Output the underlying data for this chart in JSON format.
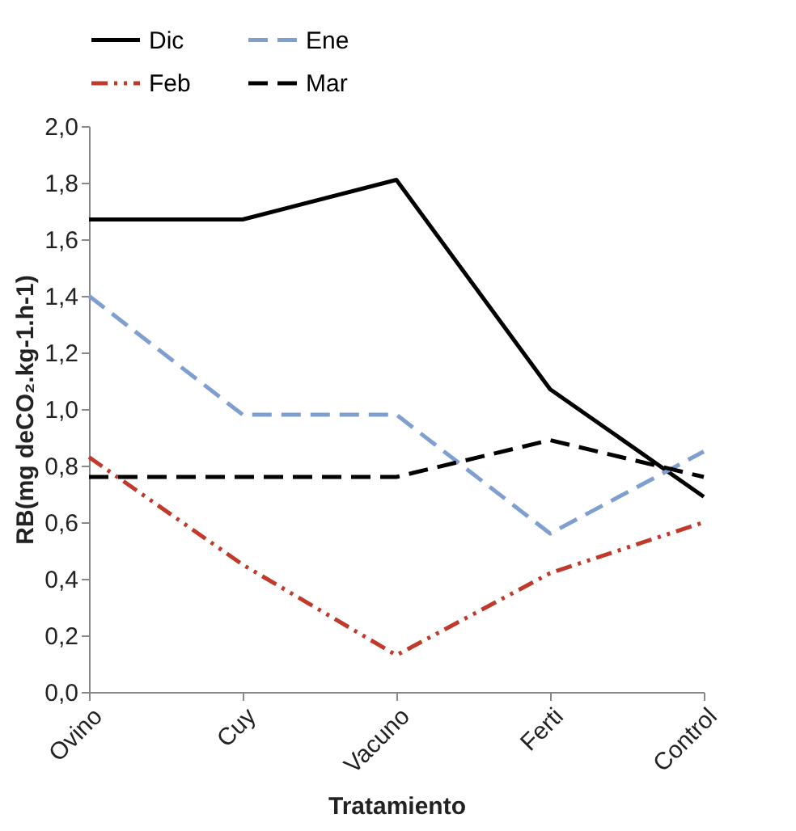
{
  "chart_data": {
    "type": "line",
    "xlabel": "Tratamiento",
    "ylabel": "RB(mg deCO₂.kg-1.h-1)",
    "categories": [
      "Ovino",
      "Cuy",
      "Vacuno",
      "Ferti",
      "Control"
    ],
    "series": [
      {
        "name": "Dic",
        "color": "#000000",
        "line_style": "solid",
        "values": [
          1.67,
          1.67,
          1.81,
          1.07,
          0.69
        ]
      },
      {
        "name": "Ene",
        "color": "#7f9fd0",
        "line_style": "dashed",
        "values": [
          1.4,
          0.98,
          0.98,
          0.56,
          0.85
        ]
      },
      {
        "name": "Feb",
        "color": "#c0392b",
        "line_style": "dashdot",
        "values": [
          0.83,
          0.45,
          0.13,
          0.42,
          0.6
        ]
      },
      {
        "name": "Mar",
        "color": "#000000",
        "line_style": "dashed",
        "values": [
          0.76,
          0.76,
          0.76,
          0.89,
          0.76
        ]
      }
    ],
    "ylim": [
      0,
      2
    ],
    "yticks": [
      {
        "value": 0,
        "label": "0,0"
      },
      {
        "value": 0.2,
        "label": "0,2"
      },
      {
        "value": 0.4,
        "label": "0,4"
      },
      {
        "value": 0.6,
        "label": "0,6"
      },
      {
        "value": 0.8,
        "label": "0,8"
      },
      {
        "value": 1,
        "label": "1,0"
      },
      {
        "value": 1.2,
        "label": "1,2"
      },
      {
        "value": 1.4,
        "label": "1,4"
      },
      {
        "value": 1.6,
        "label": "1,6"
      },
      {
        "value": 1.8,
        "label": "1,8"
      },
      {
        "value": 2,
        "label": "2,0"
      }
    ],
    "grid": false,
    "legend": "top"
  }
}
